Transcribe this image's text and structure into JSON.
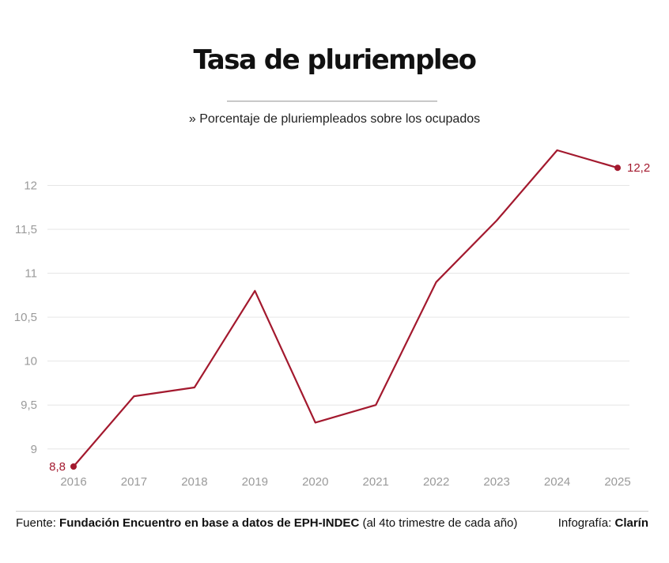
{
  "header": {
    "title": "Tasa de pluriempleo",
    "subtitle": "» Porcentaje de pluriempleados sobre los ocupados"
  },
  "chart_data": {
    "type": "line",
    "x": [
      "2016",
      "2017",
      "2018",
      "2019",
      "2020",
      "2021",
      "2022",
      "2023",
      "2024",
      "2025"
    ],
    "series": [
      {
        "values": [
          8.8,
          9.6,
          9.7,
          10.8,
          9.3,
          9.5,
          10.9,
          11.6,
          12.4,
          12.2
        ],
        "color": "#a3192e"
      }
    ],
    "y_ticks": [
      "9",
      "9,5",
      "10",
      "10,5",
      "11",
      "11,5",
      "12"
    ],
    "y_tick_values": [
      9,
      9.5,
      10,
      10.5,
      11,
      11.5,
      12
    ],
    "ylim": [
      8.9,
      12.6
    ],
    "grid": true,
    "data_labels": {
      "first": "8,8",
      "last": "12,2"
    }
  },
  "footer": {
    "source_prefix": "Fuente: ",
    "source_bold": "Fundación Encuentro en base a datos de EPH-INDEC",
    "source_suffix": " (al 4to trimestre de cada año)",
    "credit_prefix": "Infografía: ",
    "credit_bold": "Clarín"
  },
  "colors": {
    "line": "#a3192e",
    "grid": "#e6e6e6",
    "ticks": "#9a9a9a"
  }
}
